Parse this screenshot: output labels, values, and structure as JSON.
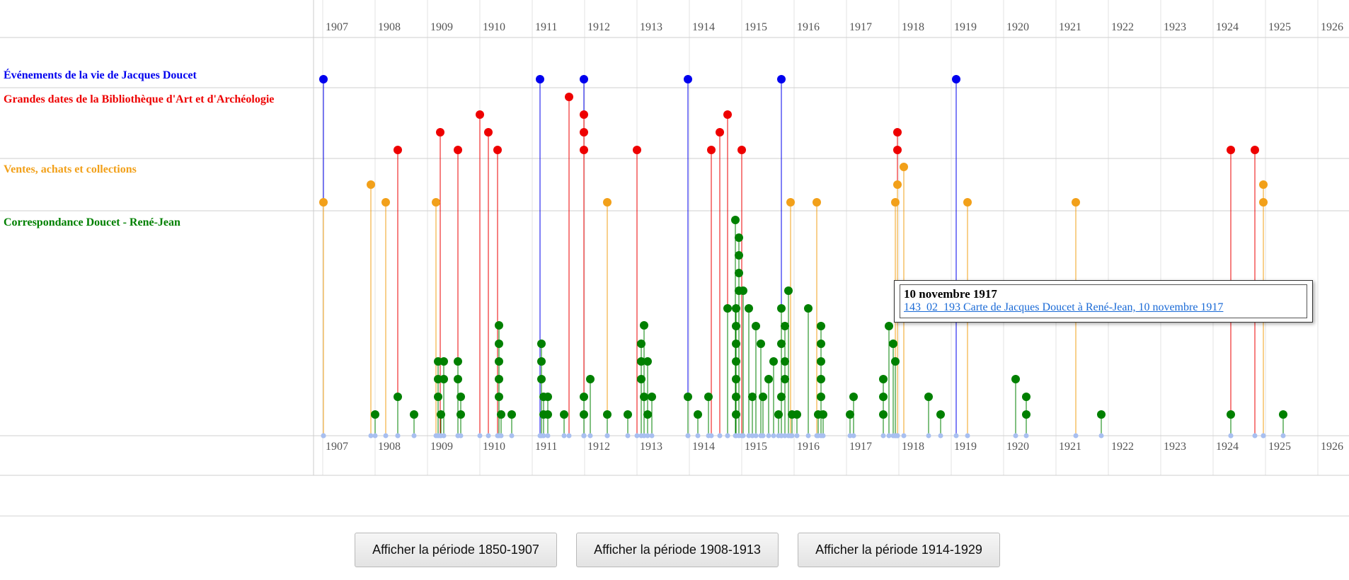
{
  "timeline": {
    "years": [
      "1907",
      "1908",
      "1909",
      "1910",
      "1911",
      "1912",
      "1913",
      "1914",
      "1915",
      "1916",
      "1917",
      "1918",
      "1919",
      "1920",
      "1921",
      "1922",
      "1923",
      "1924",
      "1925",
      "1926"
    ],
    "bands": [
      {
        "id": "vie",
        "label": "Événements de la vie de Jacques Doucet",
        "color": "#0000ee"
      },
      {
        "id": "bibliotheque",
        "label": "Grandes dates de la Bibliothèque d'Art et d'Archéologie",
        "color": "#ee0000"
      },
      {
        "id": "ventes",
        "label": "Ventes, achats et collections",
        "color": "#f2a019"
      },
      {
        "id": "correspondance",
        "label": "Correspondance Doucet - René-Jean",
        "color": "#008000"
      }
    ],
    "colors": {
      "grid": "#e3e3e3",
      "line": "#9fb6ee",
      "axis": "#bbbbbb"
    }
  },
  "tooltip": {
    "title": "10 novembre 1917",
    "link": "143_02_193 Carte de Jacques Doucet à René-Jean, 10 novembre 1917"
  },
  "buttons": [
    {
      "label": "Afficher la période 1850-1907"
    },
    {
      "label": "Afficher la période 1908-1913"
    },
    {
      "label": "Afficher la période 1914-1929"
    }
  ]
}
